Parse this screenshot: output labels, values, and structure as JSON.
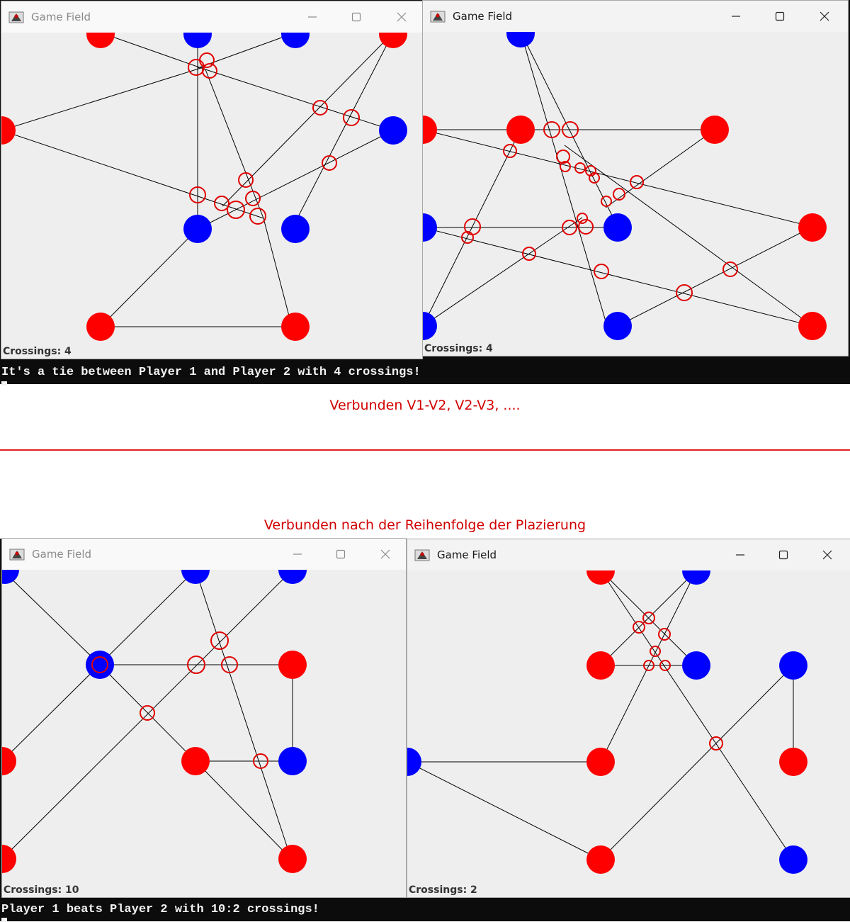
{
  "colors": {
    "player_red": "#ff0000",
    "player_blue": "#0000ff",
    "crossing_marker": "#e00000",
    "caption": "#d10000"
  },
  "icons": {
    "window_app": "java-duke-icon",
    "minimize": "minimize-icon",
    "maximize": "maximize-icon",
    "close": "close-icon"
  },
  "section1": {
    "caption": "Verbunden V1-V2, V2-V3, ....",
    "terminal_result": "It's a tie between Player 1 and Player 2 with 4 crossings!",
    "window_left": {
      "title": "Game Field",
      "crossings_label": "Crossings: 4"
    },
    "window_right": {
      "title": "Game Field",
      "crossings_label": "Crossings: 4"
    }
  },
  "section2": {
    "caption": "Verbunden nach der Reihenfolge der Plazierung",
    "terminal_result": "Player 1 beats Player 2 with 10:2 crossings!",
    "window_left": {
      "title": "Game Field",
      "crossings_label": "Crossings: 10"
    },
    "window_right": {
      "title": "Game Field",
      "crossings_label": "Crossings: 2"
    }
  }
}
